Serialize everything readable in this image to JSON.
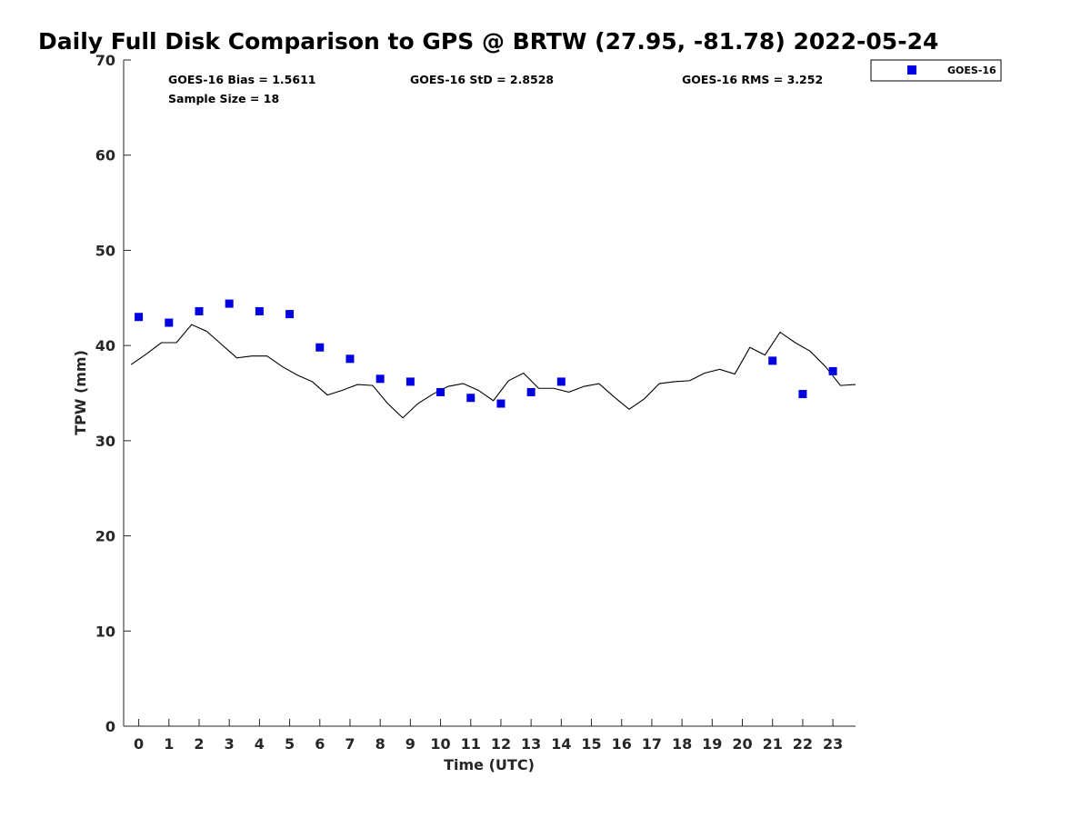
{
  "chart_data": {
    "type": "scatter",
    "title": "Daily Full Disk Comparison to GPS @ BRTW (27.95, -81.78) 2022-05-24",
    "xlabel": "Time (UTC)",
    "ylabel": "TPW (mm)",
    "xlim": [
      -0.5,
      23.75
    ],
    "ylim": [
      0,
      70
    ],
    "xticks": [
      0,
      1,
      2,
      3,
      4,
      5,
      6,
      7,
      8,
      9,
      10,
      11,
      12,
      13,
      14,
      15,
      16,
      17,
      18,
      19,
      20,
      21,
      22,
      23
    ],
    "yticks": [
      0,
      10,
      20,
      30,
      40,
      50,
      60,
      70
    ],
    "grid": false,
    "legend_position": "top-right",
    "stats": {
      "bias": "GOES-16 Bias = 1.5611",
      "std": "GOES-16 StD = 2.8528",
      "rms": "GOES-16 RMS = 3.252",
      "sample": "Sample Size = 18"
    },
    "series": [
      {
        "name": "GOES-16",
        "kind": "scatter",
        "marker": "square",
        "color": "#0000e0",
        "x": [
          0,
          1,
          2,
          3,
          4,
          5,
          6,
          7,
          8,
          9,
          10,
          11,
          12,
          13,
          14,
          21,
          22,
          23
        ],
        "y": [
          43.0,
          42.4,
          43.6,
          44.4,
          43.6,
          43.3,
          39.8,
          38.6,
          36.5,
          36.2,
          35.1,
          34.5,
          33.9,
          35.1,
          36.2,
          38.4,
          34.9,
          37.3
        ]
      },
      {
        "kind": "line",
        "color": "#000000",
        "x": [
          -0.25,
          0.25,
          0.75,
          1.25,
          1.75,
          2.25,
          2.75,
          3.25,
          3.75,
          4.25,
          4.75,
          5.25,
          5.75,
          6.25,
          6.75,
          7.25,
          7.75,
          8.25,
          8.75,
          9.25,
          9.75,
          10.25,
          10.75,
          11.25,
          11.75,
          12.25,
          12.75,
          13.25,
          13.75,
          14.25,
          14.75,
          15.25,
          15.75,
          16.25,
          16.75,
          17.25,
          17.75,
          18.25,
          18.75,
          19.25,
          19.75,
          20.25,
          20.75,
          21.25,
          21.75,
          22.25,
          22.75,
          23.25,
          23.75
        ],
        "y": [
          38.0,
          39.1,
          40.3,
          40.3,
          42.2,
          41.5,
          40.1,
          38.7,
          38.9,
          38.9,
          37.8,
          36.9,
          36.2,
          34.8,
          35.3,
          35.9,
          35.8,
          33.9,
          32.4,
          33.9,
          34.9,
          35.7,
          36.0,
          35.3,
          34.2,
          36.3,
          37.1,
          35.5,
          35.5,
          35.1,
          35.7,
          36.0,
          34.6,
          33.3,
          34.4,
          36.0,
          36.2,
          36.3,
          37.1,
          37.5,
          37.0,
          39.8,
          39.0,
          41.4,
          40.3,
          39.4,
          37.8,
          35.8,
          35.9
        ]
      }
    ]
  }
}
